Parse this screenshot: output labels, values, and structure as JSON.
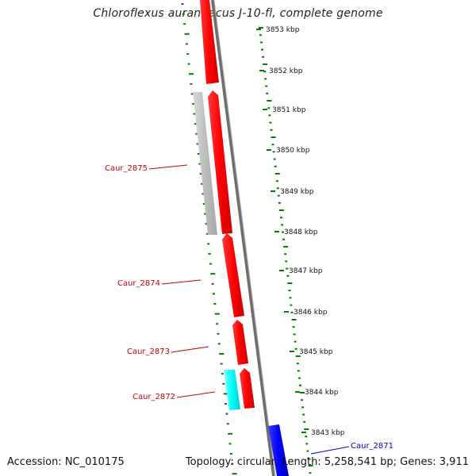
{
  "title": "Chloroflexus aurantiacus J-10-fl, complete genome",
  "footer": {
    "accession": "Accession: NC_010175",
    "topology": "Topology: circular; Length: 5,258,541 bp; Genes: 3,911"
  },
  "colors": {
    "forward_gene": "#ff0000",
    "reverse_gene_blue": "#0000ff",
    "pseudo_gene_gray": "#bdbdbd",
    "rna_gene_cyan": "#00ffff",
    "tick_green": "#008000",
    "label_red": "#cc0000",
    "label_blue": "#0000cc",
    "backbone": "#808080"
  },
  "scale": {
    "labels": [
      "3853 kbp",
      "3852 kbp",
      "3851 kbp",
      "3850 kbp",
      "3849 kbp",
      "3848 kbp",
      "3847 kbp",
      "3846 kbp",
      "3845 kbp",
      "3844 kbp",
      "3843 kbp"
    ]
  },
  "genes": [
    {
      "label": "Caur_2875",
      "color_key": "pseudo_gene_gray"
    },
    {
      "label": "Caur_2874",
      "color_key": "forward_gene"
    },
    {
      "label": "Caur_2873",
      "color_key": "forward_gene"
    },
    {
      "label": "Caur_2872",
      "color_key": "rna_gene_cyan"
    },
    {
      "label": "Caur_2871",
      "color_key": "reverse_gene_blue"
    }
  ]
}
